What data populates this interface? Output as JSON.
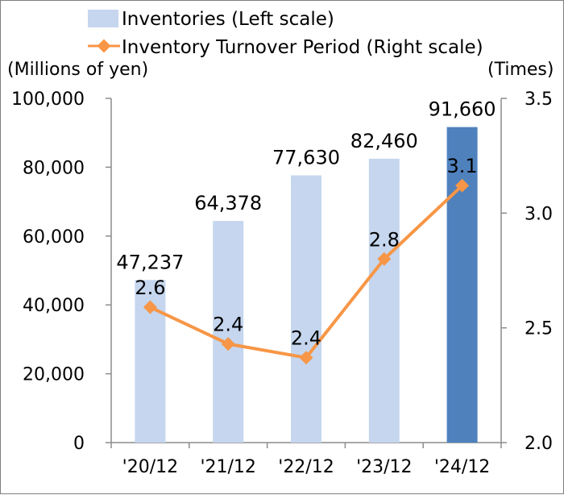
{
  "chart_data": {
    "type": "bar+line",
    "categories": [
      "'20/12",
      "'21/12",
      "'22/12",
      "'23/12",
      "'24/12"
    ],
    "series": [
      {
        "name": "Inventories (Left scale)",
        "kind": "bar",
        "axis": "left",
        "values": [
          47237,
          64378,
          77630,
          82460,
          91660
        ],
        "labels": [
          "47,237",
          "64,378",
          "77,630",
          "82,460",
          "91,660"
        ],
        "color": "#c5d6ee",
        "highlight_color": "#4f81bd",
        "highlight_index": 4
      },
      {
        "name": "Inventory Turnover Period (Right scale)",
        "kind": "line",
        "axis": "right",
        "values": [
          2.59,
          2.43,
          2.37,
          2.8,
          3.12
        ],
        "labels": [
          "2.6",
          "2.4",
          "2.4",
          "2.8",
          "3.1"
        ],
        "color": "#f79646"
      }
    ],
    "y_left": {
      "unit_label": "(Millions of yen)",
      "ylim": [
        0,
        100000
      ],
      "ticks": [
        0,
        20000,
        40000,
        60000,
        80000,
        100000
      ],
      "tick_labels": [
        "0",
        "20,000",
        "40,000",
        "60,000",
        "80,000",
        "100,000"
      ]
    },
    "y_right": {
      "unit_label": "(Times)",
      "ylim": [
        2.0,
        3.5
      ],
      "ticks": [
        2.0,
        2.5,
        3.0,
        3.5
      ],
      "tick_labels": [
        "2.0",
        "2.5",
        "3.0",
        "3.5"
      ]
    },
    "grid": false,
    "legend_position": "top-center"
  }
}
